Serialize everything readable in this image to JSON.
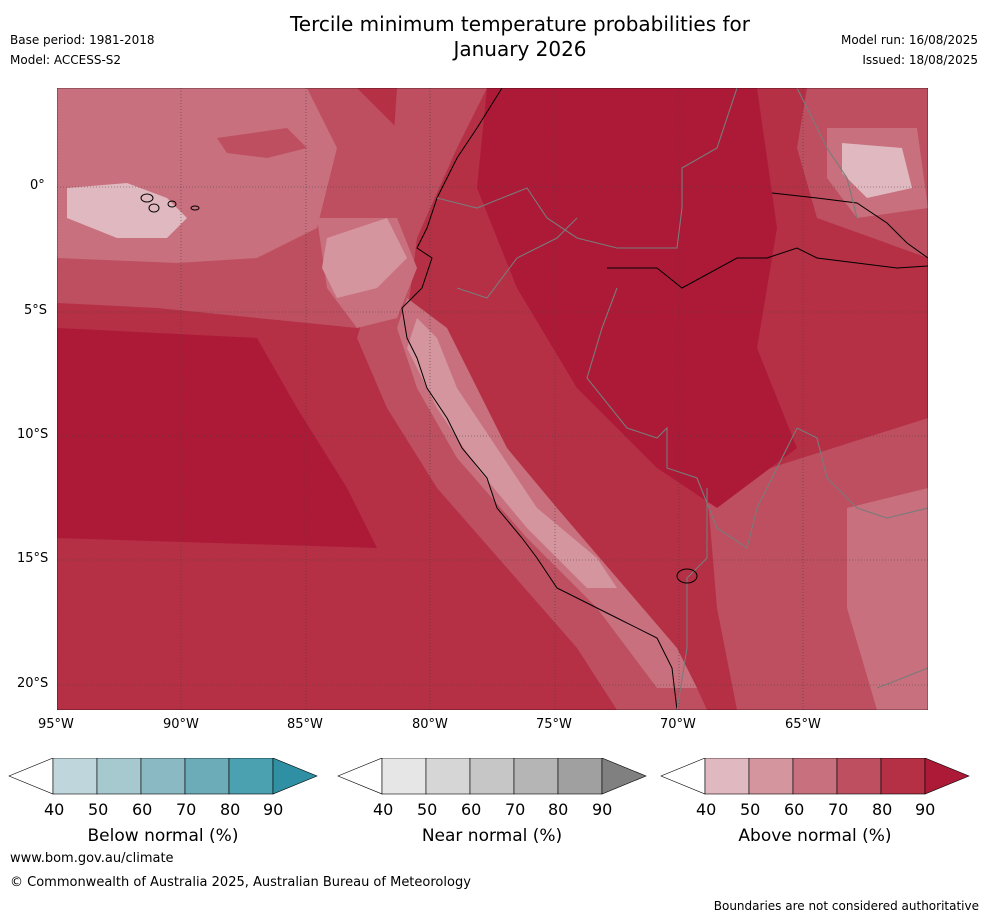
{
  "title_line1": "Tercile minimum temperature probabilities for",
  "title_line2": "January 2026",
  "base_period": "Base period: 1981-2018",
  "model": "Model: ACCESS-S2",
  "model_run": "Model run: 16/08/2025",
  "issued": "Issued: 18/08/2025",
  "lon_labels": [
    "95°W",
    "90°W",
    "85°W",
    "80°W",
    "75°W",
    "70°W",
    "65°W"
  ],
  "lat_labels": [
    "0°",
    "5°S",
    "10°S",
    "15°S",
    "20°S"
  ],
  "colorbars": [
    {
      "label": "Below normal (%)",
      "ticks": [
        "40",
        "50",
        "60",
        "70",
        "80",
        "90"
      ],
      "colors": [
        "#ffffff",
        "#bfd7dc",
        "#a6c9d0",
        "#8ab9c4",
        "#6cacb8",
        "#4ba1b0",
        "#2f8fa3"
      ]
    },
    {
      "label": "Near normal (%)",
      "ticks": [
        "40",
        "50",
        "60",
        "70",
        "80",
        "90"
      ],
      "colors": [
        "#ffffff",
        "#e6e6e6",
        "#d6d6d6",
        "#c6c6c6",
        "#b5b5b5",
        "#a0a0a0",
        "#808080"
      ]
    },
    {
      "label": "Above normal (%)",
      "ticks": [
        "40",
        "50",
        "60",
        "70",
        "80",
        "90"
      ],
      "colors": [
        "#ffffff",
        "#e0b8bf",
        "#d4959e",
        "#c8707d",
        "#bd4f60",
        "#b52f45",
        "#ad1a37"
      ]
    }
  ],
  "footer_url": "www.bom.gov.au/climate",
  "copyright": "© Commonwealth of Australia 2025, Australian Bureau of Meteorology",
  "disclaimer": "Boundaries are not considered authoritative"
}
